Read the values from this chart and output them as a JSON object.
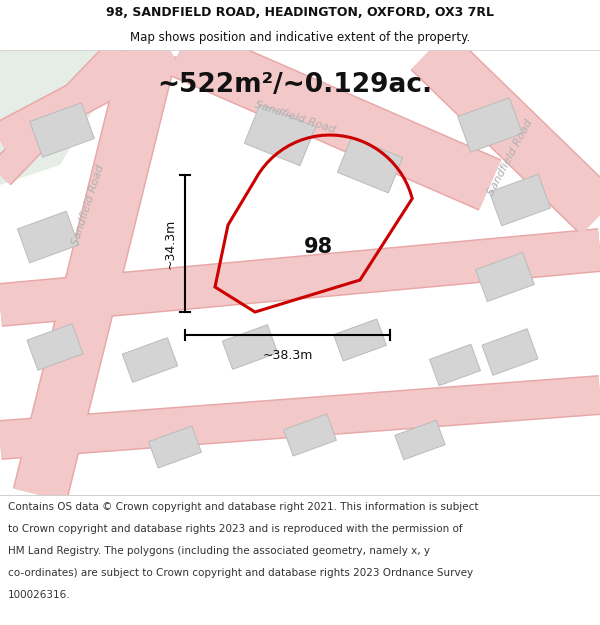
{
  "title_line1": "98, SANDFIELD ROAD, HEADINGTON, OXFORD, OX3 7RL",
  "title_line2": "Map shows position and indicative extent of the property.",
  "area_text": "~522m²/~0.129ac.",
  "label_98": "98",
  "dim_vertical": "~34.3m",
  "dim_horizontal": "~38.3m",
  "footer_lines": [
    "Contains OS data © Crown copyright and database right 2021. This information is subject",
    "to Crown copyright and database rights 2023 and is reproduced with the permission of",
    "HM Land Registry. The polygons (including the associated geometry, namely x, y",
    "co-ordinates) are subject to Crown copyright and database rights 2023 Ordnance Survey",
    "100026316."
  ],
  "map_bg": "#f0f0ec",
  "road_fill": "#f2c8c8",
  "road_edge": "#e8a8a8",
  "property_line": "#cc0000",
  "building_fill": "#d4d4d4",
  "building_edge": "#bbbbbb",
  "green_fill": "#e6ede6",
  "title_fontsize": 9,
  "footer_fontsize": 7.5,
  "area_fontsize": 19,
  "label_fontsize": 15,
  "dim_fontsize": 9,
  "road_label_fontsize": 8
}
